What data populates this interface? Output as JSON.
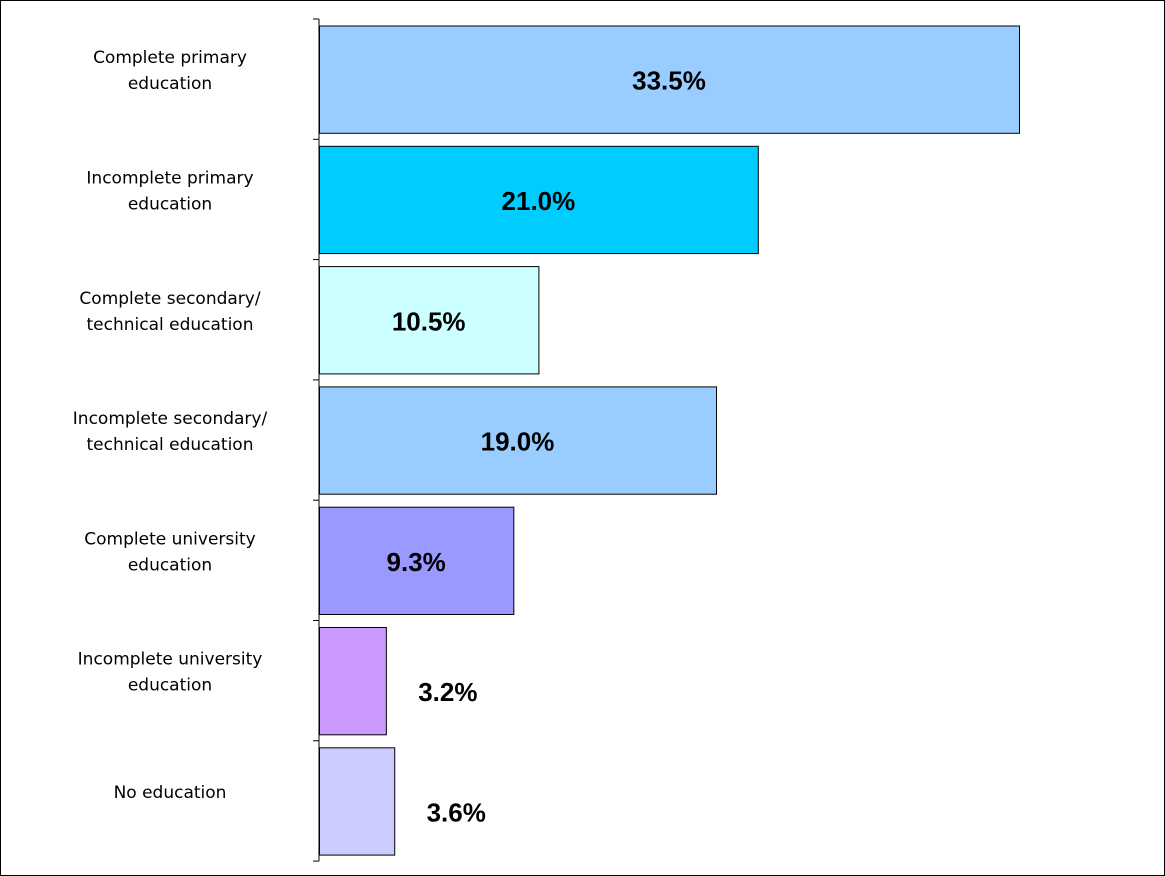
{
  "chart_data": {
    "type": "bar",
    "orientation": "horizontal",
    "title": "",
    "xlabel": "",
    "ylabel": "",
    "grid": false,
    "legend": "none",
    "xlim": [
      0,
      35
    ],
    "categories": [
      [
        "Complete primary",
        "education"
      ],
      [
        "Incomplete primary",
        "education"
      ],
      [
        "Complete secondary/",
        "technical education"
      ],
      [
        "Incomplete secondary/",
        "technical education"
      ],
      [
        "Complete university",
        "education"
      ],
      [
        "Incomplete university",
        "education"
      ],
      [
        "No education"
      ]
    ],
    "values": [
      33.5,
      21.0,
      10.5,
      19.0,
      9.3,
      3.2,
      3.6
    ],
    "value_labels": [
      "33.5%",
      "21.0%",
      "10.5%",
      "19.0%",
      "9.3%",
      "3.2%",
      "3.6%"
    ],
    "colors": [
      "#99ccff",
      "#00ccff",
      "#ccffff",
      "#99ccff",
      "#9999ff",
      "#cc99ff",
      "#ccccff"
    ]
  }
}
